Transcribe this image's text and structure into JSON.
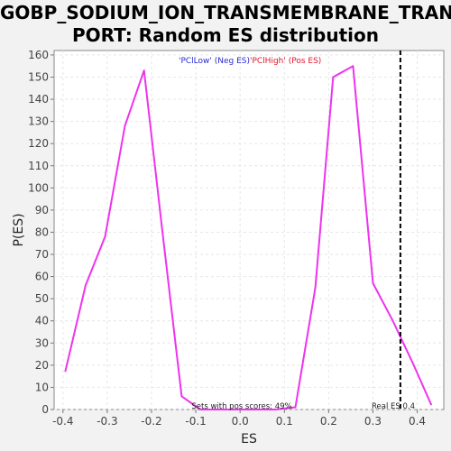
{
  "chart_data": {
    "type": "line",
    "title_line1": "GOBP_SODIUM_ION_TRANSMEMBRANE_TRANS",
    "title_line2": "PORT: Random ES distribution",
    "xlabel": "ES",
    "ylabel": "P(ES)",
    "xlim": [
      -0.42,
      0.46
    ],
    "ylim": [
      0,
      162
    ],
    "x_ticks": [
      -0.4,
      -0.3,
      -0.2,
      -0.1,
      0.0,
      0.1,
      0.2,
      0.3,
      0.4
    ],
    "x_tick_labels": [
      "-0.4",
      "-0.3",
      "-0.2",
      "-0.1",
      "0.0",
      "0.1",
      "0.2",
      "0.3",
      "0.4"
    ],
    "y_ticks": [
      0,
      10,
      20,
      30,
      40,
      50,
      60,
      70,
      80,
      90,
      100,
      110,
      120,
      130,
      140,
      150,
      160
    ],
    "y_tick_labels": [
      "0",
      "10",
      "20",
      "30",
      "40",
      "50",
      "60",
      "70",
      "80",
      "90",
      "100",
      "110",
      "120",
      "130",
      "140",
      "150",
      "160"
    ],
    "grid": true,
    "legend_neg": "'PClLow' (Neg ES)",
    "legend_pos": "'PClHigh' (Pos ES)",
    "legend_placement": "top-center",
    "series": [
      {
        "color": "#ee33ee",
        "x": [
          -0.395,
          -0.349,
          -0.305,
          -0.26,
          -0.217,
          -0.177,
          -0.132,
          -0.09,
          0.0,
          0.08,
          0.125,
          0.17,
          0.21,
          0.255,
          0.3,
          0.345,
          0.39,
          0.432
        ],
        "y": [
          17,
          56,
          78,
          128,
          153,
          83,
          6,
          0,
          0,
          0,
          1,
          55,
          150,
          155,
          57,
          40,
          21,
          2
        ]
      }
    ],
    "real_es_value": 0.362,
    "real_es_color": "#000000",
    "annotation_pos_scores": "Sets with pos scores: 49%",
    "annotation_real_es": "Real ES 0.4"
  }
}
